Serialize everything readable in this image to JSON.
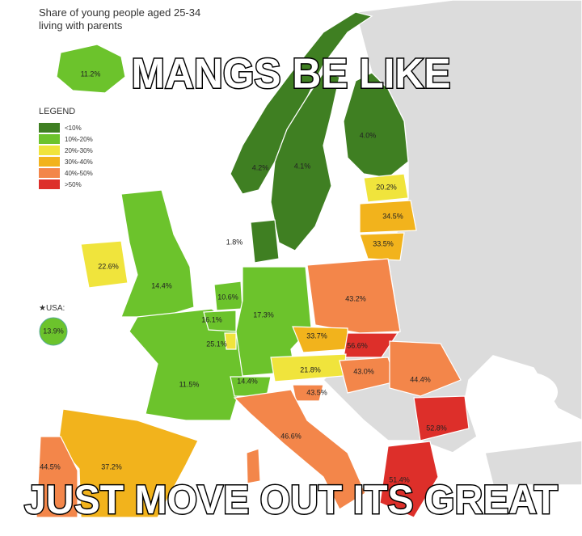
{
  "header": {
    "title_lines": [
      "Share of young people aged 25-34",
      "living with parents"
    ]
  },
  "meme": {
    "top": "MANGS BE LIKE",
    "bottom": "JUST MOVE OUT ITS GREAT"
  },
  "legend": {
    "title": "LEGEND",
    "items": [
      "<10%",
      "10%-20%",
      "20%-30%",
      "30%-40%",
      "40%-50%",
      ">50%"
    ]
  },
  "usa": {
    "label": "★USA:",
    "value": "13.9%"
  },
  "countries": [
    "11.2%",
    "4.2%",
    "4.1%",
    "4.0%",
    "20.2%",
    "34.5%",
    "33.5%",
    "1.8%",
    "22.6%",
    "14.4%",
    "10.6%",
    "16.1%",
    "17.3%",
    "43.2%",
    "25.1%",
    "33.7%",
    "56.6%",
    "21.8%",
    "43.0%",
    "44.4%",
    "11.5%",
    "14.4%",
    "43.5%",
    "52.8%",
    "46.6%",
    "37.2%",
    "44.5%",
    "51.4%"
  ]
}
